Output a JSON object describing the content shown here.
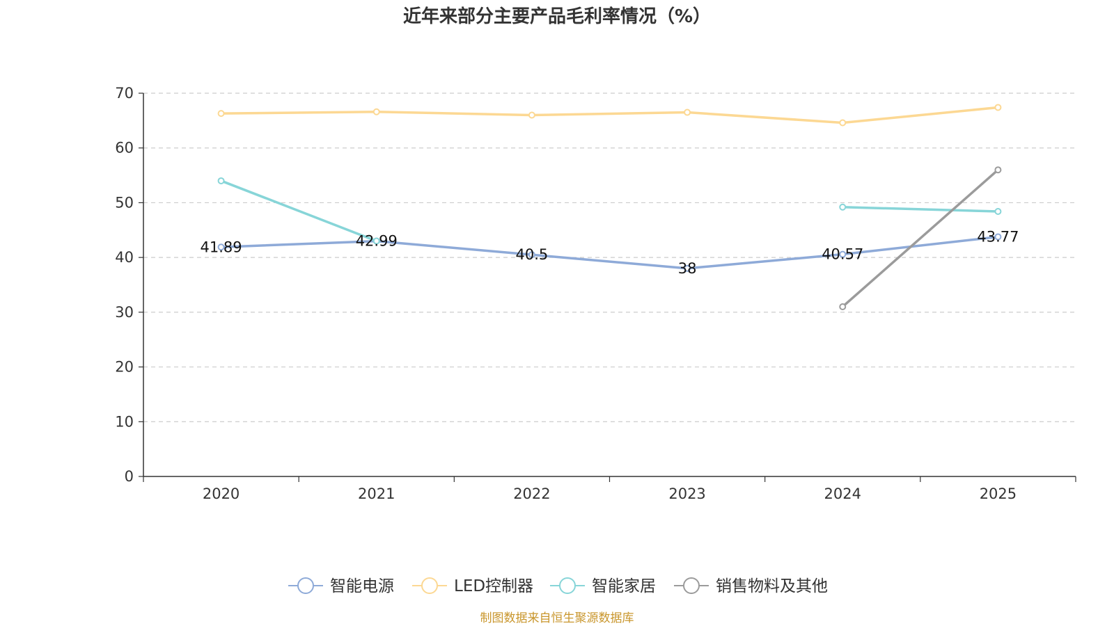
{
  "chart_data": {
    "type": "line",
    "title": "近年来部分主要产品毛利率情况（%）",
    "categories": [
      "2020",
      "2021",
      "2022",
      "2023",
      "2024",
      "2025"
    ],
    "yticks": [
      "0",
      "10",
      "20",
      "30",
      "40",
      "50",
      "60",
      "70"
    ],
    "ylim": [
      0,
      70
    ],
    "grid": true,
    "legend_position": "bottom",
    "series": [
      {
        "name": "智能电源",
        "color": "#8eaad8",
        "values": [
          41.89,
          42.99,
          40.5,
          38,
          40.57,
          43.77
        ],
        "labels": [
          "41.89",
          "42.99",
          "40.5",
          "38",
          "40.57",
          "43.77"
        ]
      },
      {
        "name": "LED控制器",
        "color": "#fcd893",
        "values": [
          66.3,
          66.6,
          66.0,
          66.5,
          64.6,
          67.4
        ],
        "labels": null
      },
      {
        "name": "智能家居",
        "color": "#87d5d8",
        "values": [
          54.0,
          43.0,
          null,
          null,
          49.2,
          48.4
        ],
        "labels": null
      },
      {
        "name": "销售物料及其他",
        "color": "#9b9b9b",
        "values": [
          null,
          null,
          null,
          null,
          31.0,
          56.0
        ],
        "labels": null
      }
    ]
  },
  "footer": {
    "source": "制图数据来自恒生聚源数据库",
    "source_color": "#c9962c"
  }
}
